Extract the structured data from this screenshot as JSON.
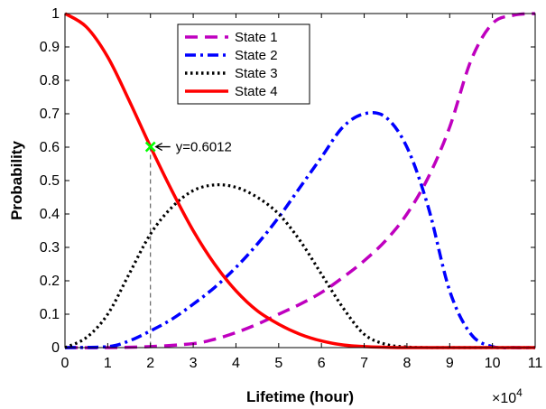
{
  "chart_data": {
    "type": "line",
    "xlabel": "Lifetime (hour)",
    "ylabel": "Probability",
    "x_exponent_label": "×10",
    "x_exponent_power": "4",
    "xlim": [
      0,
      11
    ],
    "ylim": [
      0,
      1
    ],
    "xticks": [
      0,
      1,
      2,
      3,
      4,
      5,
      6,
      7,
      8,
      9,
      10,
      11
    ],
    "yticks": [
      0,
      0.1,
      0.2,
      0.3,
      0.4,
      0.5,
      0.6,
      0.7,
      0.8,
      0.9,
      1
    ],
    "xtick_labels": [
      "0",
      "1",
      "2",
      "3",
      "4",
      "5",
      "6",
      "7",
      "8",
      "9",
      "10",
      "11"
    ],
    "ytick_labels": [
      "0",
      "0.1",
      "0.2",
      "0.3",
      "0.4",
      "0.5",
      "0.6",
      "0.7",
      "0.8",
      "0.9",
      "1"
    ],
    "legend_position": "top-center",
    "grid": false,
    "series": [
      {
        "name": "State 1",
        "color": "#bf00bf",
        "style": "dashed",
        "x": [
          0,
          1,
          2,
          3,
          3.5,
          4,
          4.5,
          5,
          5.5,
          6,
          6.5,
          7,
          7.5,
          8,
          8.5,
          9,
          9.5,
          10,
          10.5,
          11
        ],
        "y": [
          0,
          0,
          0.003,
          0.012,
          0.025,
          0.045,
          0.07,
          0.1,
          0.13,
          0.165,
          0.21,
          0.26,
          0.32,
          0.4,
          0.51,
          0.66,
          0.86,
          0.97,
          0.995,
          1.0
        ]
      },
      {
        "name": "State 2",
        "color": "#0000ff",
        "style": "dashdot",
        "x": [
          0,
          1,
          1.5,
          2,
          2.5,
          3,
          3.5,
          4,
          4.5,
          5,
          5.5,
          6,
          6.5,
          7,
          7.5,
          8,
          8.5,
          9,
          9.5,
          10,
          10.5,
          11
        ],
        "y": [
          0,
          0.003,
          0.02,
          0.05,
          0.085,
          0.13,
          0.18,
          0.24,
          0.31,
          0.39,
          0.48,
          0.57,
          0.66,
          0.7,
          0.69,
          0.6,
          0.42,
          0.17,
          0.04,
          0.003,
          0,
          0
        ]
      },
      {
        "name": "State 3",
        "color": "#000000",
        "style": "dotted",
        "x": [
          0,
          0.5,
          1,
          1.5,
          2,
          2.5,
          3,
          3.5,
          4,
          4.5,
          5,
          5.5,
          6,
          6.5,
          7,
          7.5,
          8,
          8.5,
          9,
          11
        ],
        "y": [
          0,
          0.03,
          0.1,
          0.22,
          0.34,
          0.42,
          0.47,
          0.487,
          0.48,
          0.45,
          0.4,
          0.32,
          0.22,
          0.12,
          0.04,
          0.01,
          0.002,
          0,
          0,
          0
        ]
      },
      {
        "name": "State 4",
        "color": "#ff0000",
        "style": "solid",
        "x": [
          0,
          0.5,
          1,
          1.5,
          2,
          2.5,
          3,
          3.5,
          4,
          4.5,
          5,
          5.5,
          6,
          6.5,
          7,
          7.5,
          8,
          9,
          10,
          11
        ],
        "y": [
          1.0,
          0.96,
          0.87,
          0.74,
          0.6012,
          0.47,
          0.35,
          0.25,
          0.17,
          0.11,
          0.07,
          0.04,
          0.02,
          0.008,
          0.003,
          0.001,
          0,
          0,
          0,
          0
        ]
      }
    ],
    "annotation": {
      "marker_x": 2,
      "marker_y": 0.6012,
      "marker_color": "#00ff00",
      "text": "y=0.6012"
    }
  }
}
